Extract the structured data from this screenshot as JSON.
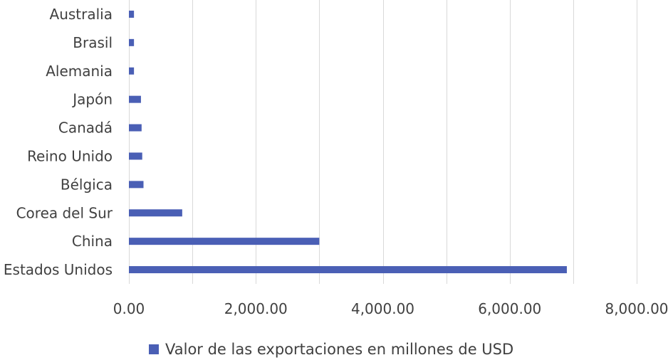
{
  "chart_data": {
    "type": "bar",
    "orientation": "horizontal",
    "categories": [
      "Estados Unidos",
      "China",
      "Corea del Sur",
      "Bélgica",
      "Reino Unido",
      "Canadá",
      "Japón",
      "Alemania",
      "Brasil",
      "Australia"
    ],
    "series": [
      {
        "name": "Valor de las exportaciones en millones de USD",
        "values": [
          6900,
          3000,
          840,
          230,
          210,
          200,
          190,
          80,
          80,
          80
        ],
        "color": "#4a5fb5"
      }
    ],
    "xlim": [
      0,
      8000
    ],
    "xticks": [
      0,
      2000,
      4000,
      6000,
      8000
    ],
    "xtick_labels": [
      "0.00",
      "2,000.00",
      "4,000.00",
      "6,000.00",
      "8,000.00"
    ],
    "grid": "vertical",
    "legend": "bottom"
  }
}
